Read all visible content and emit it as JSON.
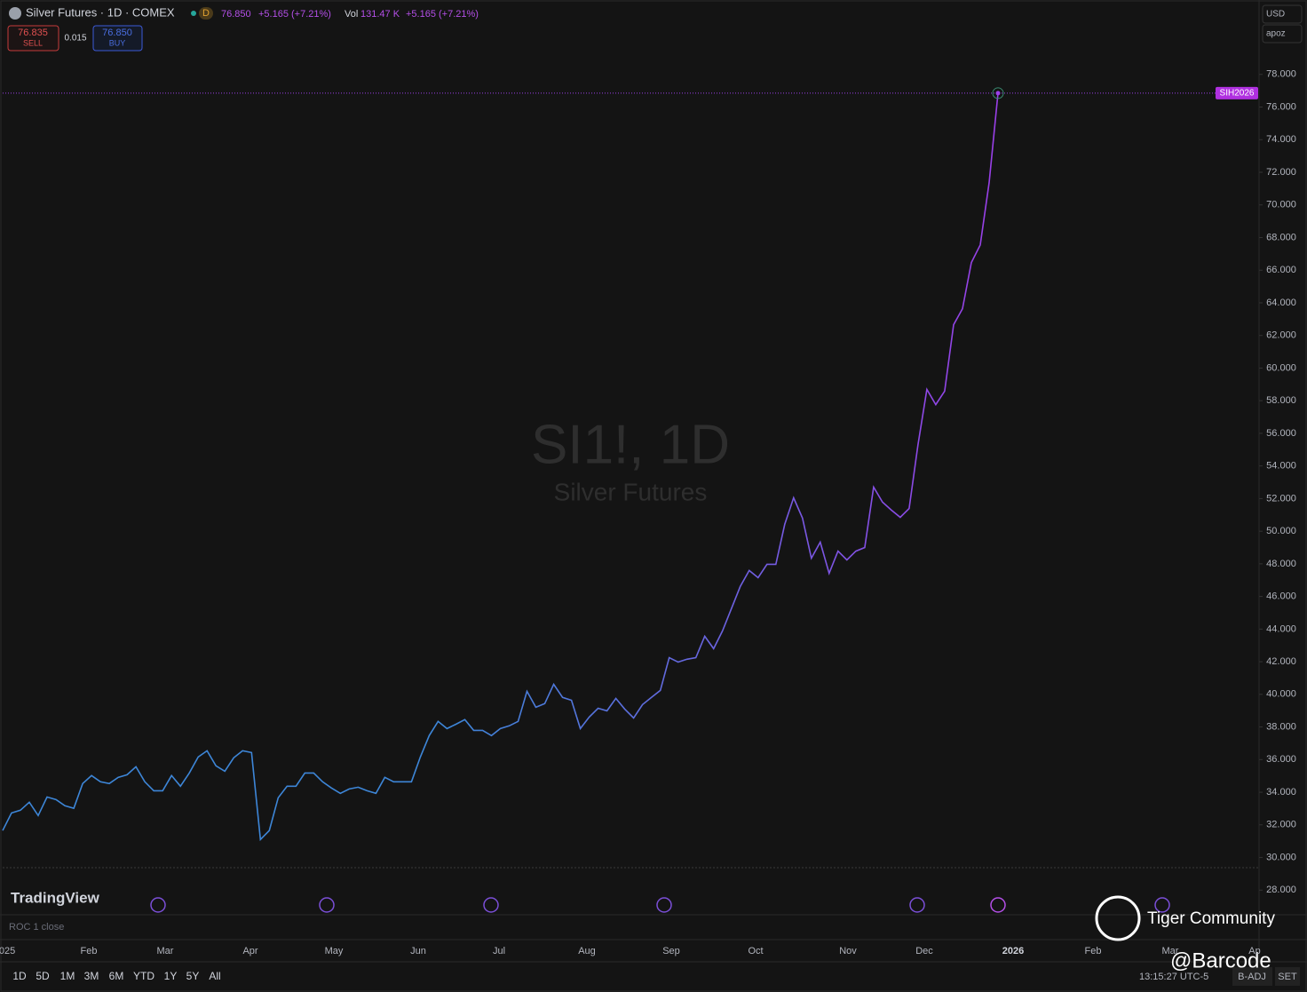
{
  "header": {
    "symbol": "Silver Futures · 1D · COMEX",
    "badge": "D",
    "price": "76.850",
    "change": "+5.165 (+7.21%)",
    "vol_label": "Vol",
    "volume": "131.47 K",
    "vol_change": "+5.165 (+7.21%)"
  },
  "trade": {
    "sell_price": "76.835",
    "sell_label": "SELL",
    "spread": "0.015",
    "buy_price": "76.850",
    "buy_label": "BUY"
  },
  "currency": "USD",
  "unit_menu": "apoz",
  "watermark": {
    "symbol": "SI1!, 1D",
    "name": "Silver Futures"
  },
  "brand": "TradingView",
  "indicator": "ROC 1 close",
  "chart_data": {
    "type": "line",
    "series": [
      {
        "name": "SIH2026",
        "colors": [
          "#3d86d8",
          "#9a3fe8"
        ],
        "values": [
          31.65,
          32.73,
          32.9,
          33.39,
          32.57,
          33.71,
          33.55,
          33.17,
          33.01,
          34.53,
          35.02,
          34.64,
          34.53,
          34.91,
          35.07,
          35.56,
          34.64,
          34.09,
          34.09,
          35.02,
          34.37,
          35.18,
          36.16,
          36.54,
          35.62,
          35.29,
          36.11,
          36.54,
          36.43,
          31.1,
          31.65,
          33.66,
          34.37,
          34.37,
          35.18,
          35.18,
          34.64,
          34.26,
          33.93,
          34.2,
          34.31,
          34.09,
          33.93,
          34.91,
          34.64,
          34.64,
          34.64,
          36.16,
          37.47,
          38.34,
          37.9,
          38.17,
          38.45,
          37.79,
          37.79,
          37.47,
          37.9,
          38.07,
          38.34,
          40.19,
          39.21,
          39.43,
          40.62,
          39.81,
          39.64,
          37.9,
          38.61,
          39.15,
          38.99,
          39.75,
          39.1,
          38.55,
          39.37,
          39.81,
          40.24,
          42.25,
          41.98,
          42.15,
          42.25,
          43.56,
          42.8,
          43.89,
          45.25,
          46.61,
          47.59,
          47.15,
          47.97,
          47.97,
          50.42,
          52.05,
          50.8,
          48.35,
          49.33,
          47.42,
          48.78,
          48.24,
          48.78,
          49.0,
          52.7,
          51.78,
          51.29,
          50.85,
          51.39,
          55.31,
          58.69,
          57.76,
          58.58,
          62.66,
          63.64,
          66.47,
          67.55,
          71.36,
          76.85
        ]
      }
    ],
    "x_labels": [
      "025",
      "Feb",
      "Mar",
      "Apr",
      "May",
      "Jun",
      "Jul",
      "Aug",
      "Sep",
      "Oct",
      "Nov",
      "Dec",
      "2026",
      "Feb",
      "Mar",
      "Ap"
    ],
    "ylim": [
      26.6,
      81.2
    ],
    "yticks": [
      {
        "value": 28,
        "label": "28.000"
      },
      {
        "value": 30,
        "label": "30.000"
      },
      {
        "value": 32,
        "label": "32.000"
      },
      {
        "value": 34,
        "label": "34.000"
      },
      {
        "value": 36,
        "label": "36.000"
      },
      {
        "value": 38,
        "label": "38.000"
      },
      {
        "value": 40,
        "label": "40.000"
      },
      {
        "value": 42,
        "label": "42.000"
      },
      {
        "value": 44,
        "label": "44.000"
      },
      {
        "value": 46,
        "label": "46.000"
      },
      {
        "value": 48,
        "label": "48.000"
      },
      {
        "value": 50,
        "label": "50.000"
      },
      {
        "value": 52,
        "label": "52.000"
      },
      {
        "value": 54,
        "label": "54.000"
      },
      {
        "value": 56,
        "label": "56.000"
      },
      {
        "value": 58,
        "label": "58.000"
      },
      {
        "value": 60,
        "label": "60.000"
      },
      {
        "value": 62,
        "label": "62.000"
      },
      {
        "value": 64,
        "label": "64.000"
      },
      {
        "value": 66,
        "label": "66.000"
      },
      {
        "value": 68,
        "label": "68.000"
      },
      {
        "value": 70,
        "label": "70.000"
      },
      {
        "value": 72,
        "label": "72.000"
      },
      {
        "value": 74,
        "label": "74.000"
      },
      {
        "value": 76,
        "label": "76.000"
      },
      {
        "value": 78,
        "label": "78.000"
      }
    ],
    "grid": false
  },
  "periods": [
    "1D",
    "5D",
    "1M",
    "3M",
    "6M",
    "YTD",
    "1Y",
    "5Y",
    "All"
  ],
  "clock": "13:15:27 UTC-5",
  "adjust": "B-ADJ",
  "settings": "SET",
  "overlay": {
    "community": "Tiger Community",
    "handle": "@Barcode"
  }
}
